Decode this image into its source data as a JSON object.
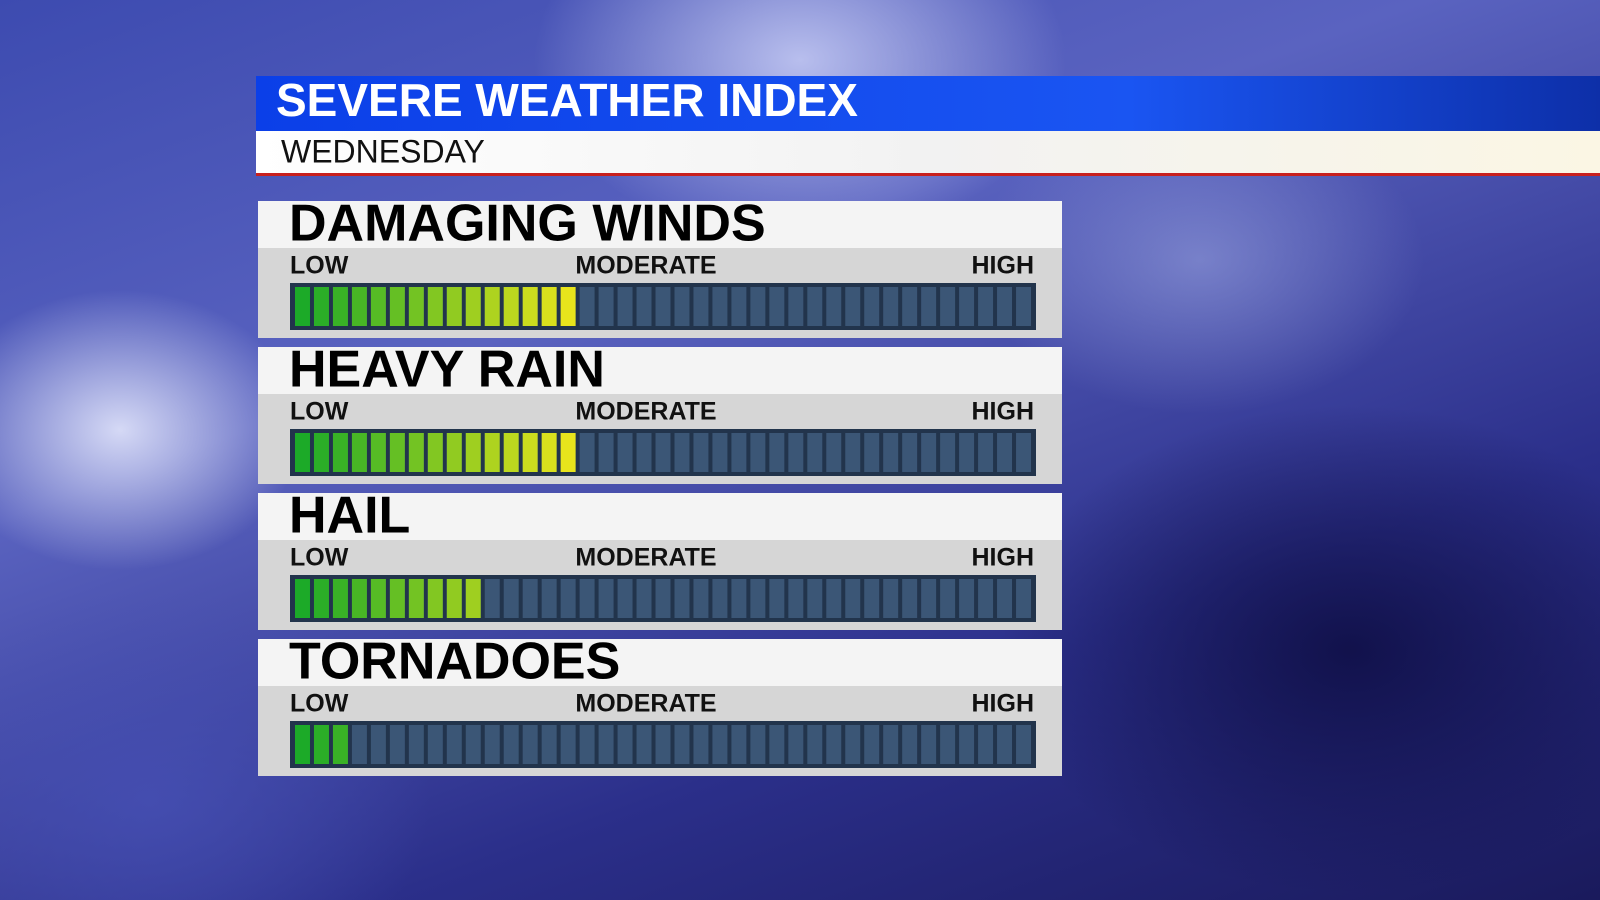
{
  "header": {
    "title": "SEVERE WEATHER INDEX",
    "subtitle": "WEDNESDAY"
  },
  "scale_labels": {
    "low": "LOW",
    "moderate": "MODERATE",
    "high": "HIGH"
  },
  "segments": 39,
  "gauges": [
    {
      "label": "DAMAGING WINDS",
      "level": 15
    },
    {
      "label": "HEAVY RAIN",
      "level": 15
    },
    {
      "label": "HAIL",
      "level": 10
    },
    {
      "label": "TORNADOES",
      "level": 3
    }
  ]
}
